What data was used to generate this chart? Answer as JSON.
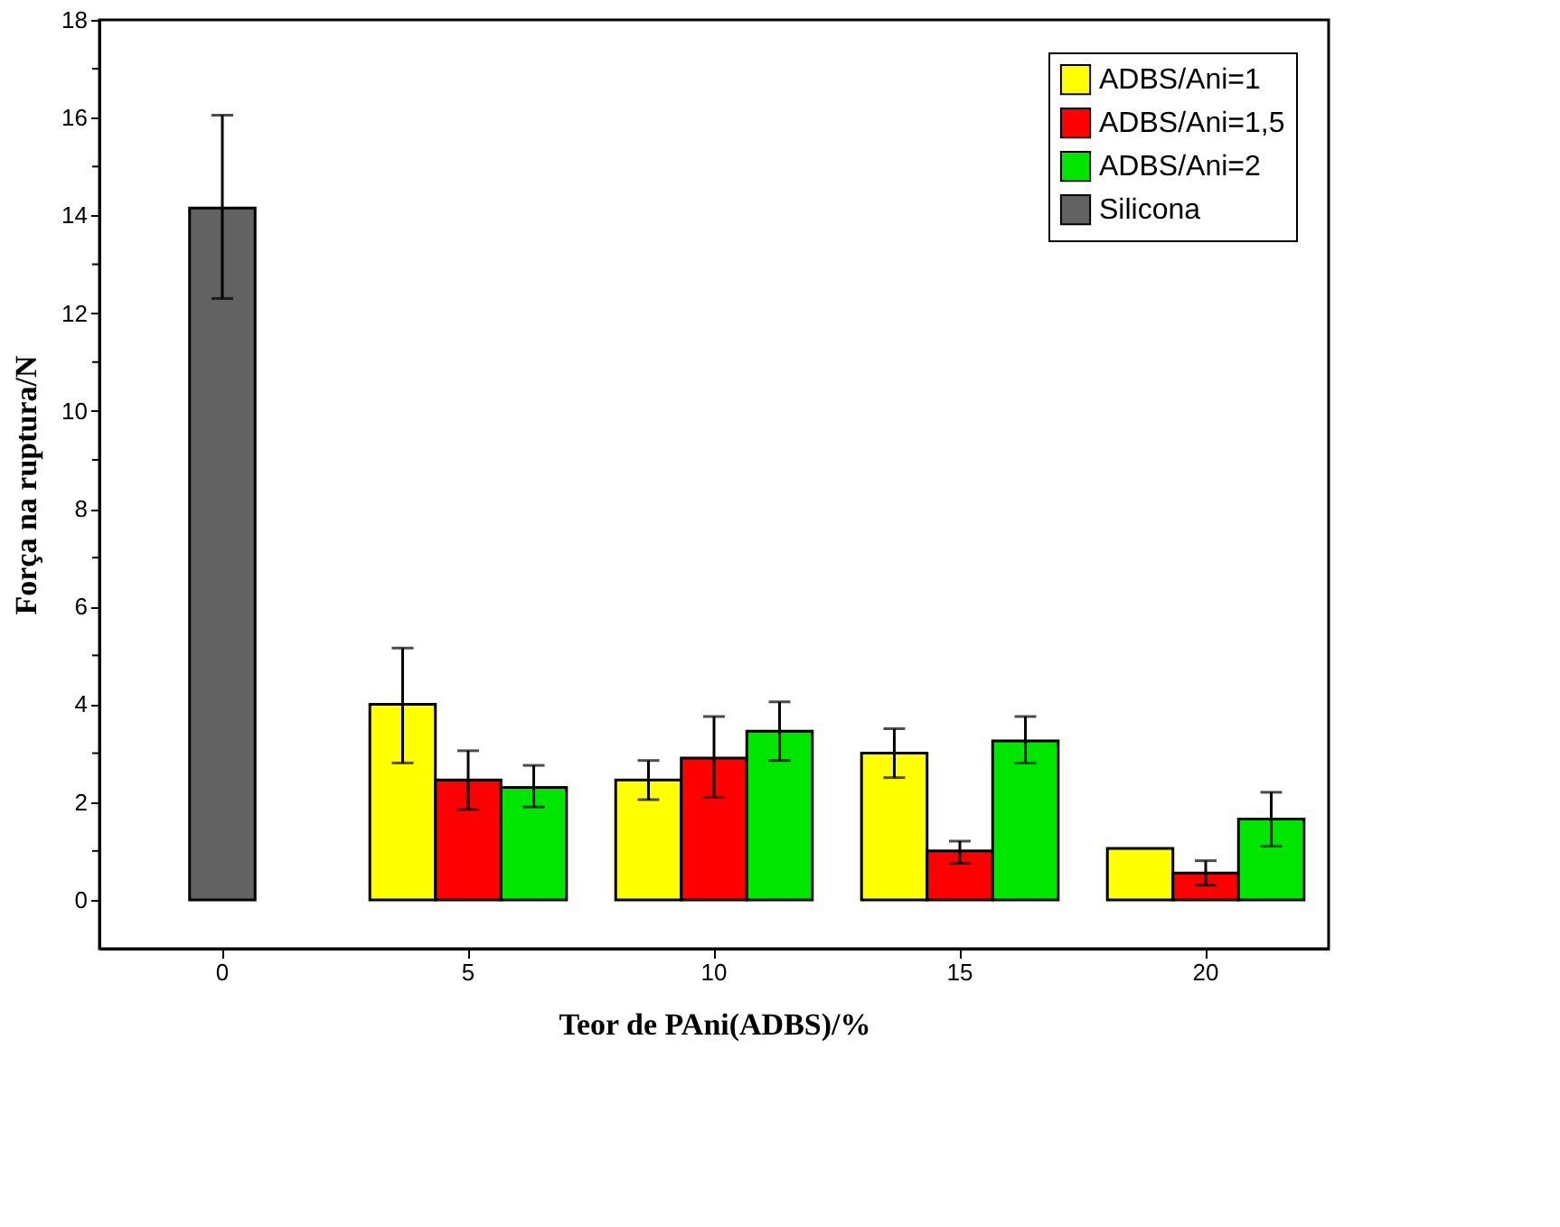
{
  "chart_data": {
    "type": "bar",
    "xlabel": "Teor de PAni(ADBS)/%",
    "ylabel": "Força na ruptura/N",
    "categories": [
      "0",
      "5",
      "10",
      "15",
      "20"
    ],
    "series": [
      {
        "name": "ADBS/Ani=1",
        "color": "#ffff00",
        "values": [
          null,
          4.0,
          2.45,
          3.0,
          1.05
        ],
        "errors": [
          null,
          [
            2.8,
            5.15
          ],
          [
            2.05,
            2.85
          ],
          [
            2.5,
            3.5
          ],
          null
        ]
      },
      {
        "name": "ADBS/Ani=1,5",
        "color": "#ff0000",
        "values": [
          null,
          2.45,
          2.9,
          1.0,
          0.55
        ],
        "errors": [
          null,
          [
            1.85,
            3.05
          ],
          [
            2.1,
            3.75
          ],
          [
            0.75,
            1.2
          ],
          [
            0.3,
            0.8
          ]
        ]
      },
      {
        "name": "ADBS/Ani=2",
        "color": "#00e600",
        "values": [
          null,
          2.3,
          3.45,
          3.25,
          1.65
        ],
        "errors": [
          null,
          [
            1.9,
            2.75
          ],
          [
            2.85,
            4.05
          ],
          [
            2.8,
            3.75
          ],
          [
            1.1,
            2.2
          ]
        ]
      },
      {
        "name": "Silicona",
        "color": "#626262",
        "values": [
          14.15,
          null,
          null,
          null,
          null
        ],
        "errors": [
          [
            12.3,
            16.05
          ],
          null,
          null,
          null,
          null
        ]
      }
    ],
    "ylim": [
      -1,
      18
    ],
    "yticks": [
      0,
      {
        "value": 1,
        "label": null
      },
      2,
      {
        "value": 3,
        "label": null
      },
      4,
      {
        "value": 5,
        "label": null
      },
      6,
      {
        "value": 7,
        "label": null
      },
      8,
      {
        "value": 9,
        "label": null
      },
      10,
      {
        "value": 11,
        "label": null
      },
      12,
      {
        "value": 13,
        "label": null
      },
      14,
      {
        "value": 15,
        "label": null
      },
      16,
      {
        "value": 17,
        "label": null
      },
      18
    ],
    "grid": false,
    "legend": "top right"
  }
}
